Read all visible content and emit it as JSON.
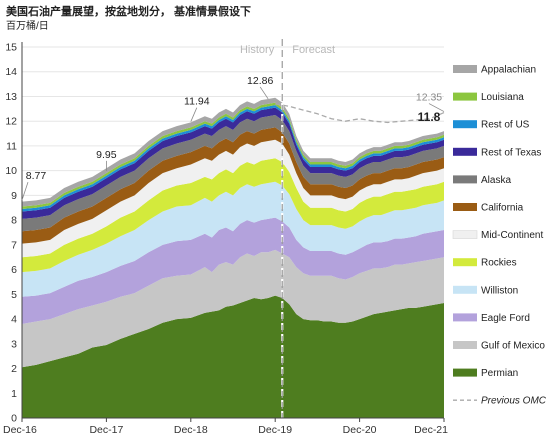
{
  "title": "美国石油产量展望，按盆地划分， 基准情景假设下",
  "unit": "百万桶/日",
  "chart_data": {
    "type": "area",
    "stacked": true,
    "y_axis": {
      "min": 0,
      "max": 15,
      "step": 1,
      "ticks": [
        "0",
        "1",
        "2",
        "3",
        "4",
        "5",
        "6",
        "7",
        "8",
        "9",
        "10",
        "11",
        "12",
        "13",
        "14",
        "15"
      ]
    },
    "x_axis": {
      "range": [
        "2016-12",
        "2021-12"
      ],
      "ticks": [
        "Dec-16",
        "Dec-17",
        "Dec-18",
        "Dec-19",
        "Dec-20",
        "Dec-21"
      ],
      "tick_months": [
        0,
        12,
        24,
        36,
        48,
        60
      ]
    },
    "divider": {
      "month": 37,
      "left_label": "History",
      "right_label": "Forecast"
    },
    "x_months": [
      0,
      2,
      4,
      6,
      8,
      10,
      12,
      14,
      16,
      18,
      20,
      22,
      24,
      26,
      27,
      28,
      29,
      30,
      31,
      32,
      33,
      34,
      35,
      36,
      37,
      38,
      39,
      40,
      41,
      42,
      43,
      44,
      45,
      46,
      47,
      48,
      49,
      50,
      51,
      52,
      53,
      54,
      55,
      56,
      57,
      58,
      59,
      60
    ],
    "series": [
      {
        "name": "Permian",
        "color": "#4e7d1f",
        "values": [
          2.05,
          2.15,
          2.3,
          2.45,
          2.6,
          2.85,
          2.95,
          3.2,
          3.4,
          3.6,
          3.85,
          4.0,
          4.05,
          4.25,
          4.3,
          4.35,
          4.5,
          4.55,
          4.65,
          4.75,
          4.85,
          4.8,
          4.85,
          4.95,
          4.85,
          4.6,
          4.2,
          4.0,
          3.95,
          3.95,
          3.9,
          3.9,
          3.85,
          3.85,
          3.9,
          4.0,
          4.1,
          4.2,
          4.25,
          4.3,
          4.35,
          4.4,
          4.45,
          4.45,
          4.5,
          4.55,
          4.6,
          4.65
        ]
      },
      {
        "name": "Gulf of Mexico",
        "color": "#c6c6c6",
        "values": [
          1.75,
          1.75,
          1.7,
          1.75,
          1.8,
          1.7,
          1.75,
          1.7,
          1.65,
          1.75,
          1.8,
          1.75,
          1.75,
          1.85,
          1.6,
          1.85,
          1.8,
          1.65,
          1.85,
          1.9,
          1.7,
          1.9,
          1.85,
          1.85,
          1.8,
          1.9,
          1.9,
          1.85,
          1.8,
          1.8,
          1.85,
          1.85,
          1.8,
          1.75,
          1.8,
          1.85,
          1.85,
          1.85,
          1.8,
          1.8,
          1.85,
          1.8,
          1.8,
          1.85,
          1.85,
          1.85,
          1.85,
          1.85
        ]
      },
      {
        "name": "Eagle Ford",
        "color": "#b3a2dc",
        "values": [
          1.1,
          1.05,
          1.05,
          1.1,
          1.15,
          1.15,
          1.2,
          1.25,
          1.3,
          1.35,
          1.35,
          1.4,
          1.4,
          1.35,
          1.4,
          1.4,
          1.4,
          1.35,
          1.35,
          1.35,
          1.35,
          1.3,
          1.35,
          1.3,
          1.3,
          1.2,
          1.1,
          1.05,
          1.0,
          1.0,
          1.0,
          1.0,
          1.0,
          1.0,
          1.0,
          1.0,
          1.05,
          1.05,
          1.05,
          1.05,
          1.05,
          1.05,
          1.05,
          1.05,
          1.1,
          1.1,
          1.1,
          1.1
        ]
      },
      {
        "name": "Williston",
        "color": "#c7e4f5",
        "values": [
          1.0,
          1.0,
          1.0,
          1.05,
          1.05,
          1.1,
          1.15,
          1.2,
          1.25,
          1.3,
          1.35,
          1.4,
          1.4,
          1.45,
          1.45,
          1.4,
          1.45,
          1.45,
          1.45,
          1.45,
          1.45,
          1.45,
          1.45,
          1.45,
          1.45,
          1.35,
          1.25,
          1.1,
          1.05,
          1.05,
          1.05,
          1.05,
          1.05,
          1.05,
          1.05,
          1.1,
          1.1,
          1.1,
          1.1,
          1.15,
          1.15,
          1.15,
          1.15,
          1.15,
          1.15,
          1.15,
          1.15,
          1.2
        ]
      },
      {
        "name": "Rockies",
        "color": "#d3ea3c",
        "values": [
          0.6,
          0.6,
          0.6,
          0.65,
          0.65,
          0.65,
          0.7,
          0.75,
          0.75,
          0.8,
          0.85,
          0.85,
          0.9,
          0.85,
          0.9,
          0.9,
          0.9,
          0.9,
          0.9,
          0.9,
          0.9,
          0.95,
          0.95,
          0.95,
          0.95,
          0.9,
          0.85,
          0.75,
          0.7,
          0.7,
          0.7,
          0.7,
          0.7,
          0.7,
          0.7,
          0.75,
          0.75,
          0.75,
          0.75,
          0.75,
          0.75,
          0.75,
          0.75,
          0.75,
          0.75,
          0.75,
          0.75,
          0.75
        ]
      },
      {
        "name": "Mid-Continent",
        "color": "#f0f0f0",
        "values": [
          0.55,
          0.55,
          0.55,
          0.6,
          0.6,
          0.6,
          0.65,
          0.65,
          0.65,
          0.7,
          0.7,
          0.7,
          0.75,
          0.75,
          0.75,
          0.75,
          0.75,
          0.75,
          0.75,
          0.75,
          0.75,
          0.75,
          0.75,
          0.75,
          0.75,
          0.7,
          0.6,
          0.55,
          0.5,
          0.5,
          0.5,
          0.5,
          0.5,
          0.5,
          0.5,
          0.5,
          0.5,
          0.5,
          0.5,
          0.5,
          0.5,
          0.5,
          0.5,
          0.55,
          0.55,
          0.55,
          0.55,
          0.55
        ]
      },
      {
        "name": "California",
        "color": "#9a5c14",
        "values": [
          0.5,
          0.5,
          0.5,
          0.5,
          0.5,
          0.5,
          0.5,
          0.5,
          0.5,
          0.5,
          0.5,
          0.5,
          0.5,
          0.5,
          0.5,
          0.5,
          0.5,
          0.5,
          0.5,
          0.5,
          0.5,
          0.5,
          0.5,
          0.5,
          0.45,
          0.45,
          0.45,
          0.45,
          0.45,
          0.45,
          0.45,
          0.45,
          0.45,
          0.45,
          0.45,
          0.45,
          0.45,
          0.45,
          0.45,
          0.45,
          0.45,
          0.45,
          0.45,
          0.45,
          0.45,
          0.45,
          0.45,
          0.45
        ]
      },
      {
        "name": "Alaska",
        "color": "#7a7a7a",
        "values": [
          0.5,
          0.5,
          0.5,
          0.5,
          0.5,
          0.5,
          0.5,
          0.5,
          0.5,
          0.5,
          0.5,
          0.5,
          0.5,
          0.5,
          0.5,
          0.5,
          0.5,
          0.5,
          0.5,
          0.5,
          0.5,
          0.5,
          0.5,
          0.5,
          0.5,
          0.5,
          0.45,
          0.45,
          0.45,
          0.45,
          0.45,
          0.45,
          0.45,
          0.45,
          0.45,
          0.45,
          0.45,
          0.45,
          0.45,
          0.45,
          0.45,
          0.45,
          0.45,
          0.45,
          0.45,
          0.45,
          0.45,
          0.45
        ]
      },
      {
        "name": "Rest of Texas",
        "color": "#3a2a9a",
        "values": [
          0.3,
          0.3,
          0.3,
          0.3,
          0.3,
          0.3,
          0.3,
          0.3,
          0.3,
          0.3,
          0.3,
          0.3,
          0.3,
          0.3,
          0.3,
          0.3,
          0.3,
          0.3,
          0.3,
          0.3,
          0.3,
          0.3,
          0.3,
          0.3,
          0.3,
          0.3,
          0.25,
          0.25,
          0.25,
          0.25,
          0.25,
          0.25,
          0.25,
          0.25,
          0.25,
          0.25,
          0.25,
          0.25,
          0.25,
          0.25,
          0.25,
          0.25,
          0.25,
          0.25,
          0.25,
          0.25,
          0.25,
          0.25
        ]
      },
      {
        "name": "Rest of US",
        "color": "#1d8fd6",
        "values": [
          0.1,
          0.1,
          0.1,
          0.1,
          0.1,
          0.1,
          0.1,
          0.1,
          0.1,
          0.1,
          0.1,
          0.1,
          0.1,
          0.1,
          0.1,
          0.1,
          0.1,
          0.1,
          0.1,
          0.1,
          0.1,
          0.1,
          0.1,
          0.1,
          0.1,
          0.1,
          0.1,
          0.1,
          0.1,
          0.1,
          0.1,
          0.1,
          0.1,
          0.1,
          0.1,
          0.1,
          0.1,
          0.1,
          0.1,
          0.1,
          0.1,
          0.1,
          0.1,
          0.1,
          0.1,
          0.1,
          0.1,
          0.1
        ]
      },
      {
        "name": "Louisiana",
        "color": "#8cc63f",
        "values": [
          0.1,
          0.1,
          0.1,
          0.1,
          0.1,
          0.1,
          0.1,
          0.1,
          0.1,
          0.1,
          0.1,
          0.1,
          0.1,
          0.1,
          0.1,
          0.1,
          0.1,
          0.1,
          0.1,
          0.1,
          0.1,
          0.1,
          0.1,
          0.1,
          0.1,
          0.1,
          0.1,
          0.1,
          0.1,
          0.1,
          0.1,
          0.1,
          0.1,
          0.1,
          0.1,
          0.1,
          0.1,
          0.1,
          0.1,
          0.1,
          0.1,
          0.1,
          0.1,
          0.1,
          0.1,
          0.1,
          0.1,
          0.1
        ]
      },
      {
        "name": "Appalachian",
        "color": "#a6a6a6",
        "values": [
          0.2,
          0.2,
          0.2,
          0.2,
          0.2,
          0.2,
          0.2,
          0.2,
          0.2,
          0.2,
          0.2,
          0.2,
          0.2,
          0.2,
          0.2,
          0.2,
          0.2,
          0.2,
          0.2,
          0.2,
          0.2,
          0.2,
          0.2,
          0.2,
          0.2,
          0.2,
          0.15,
          0.15,
          0.15,
          0.15,
          0.15,
          0.15,
          0.15,
          0.15,
          0.15,
          0.15,
          0.15,
          0.15,
          0.15,
          0.15,
          0.15,
          0.15,
          0.15,
          0.15,
          0.15,
          0.15,
          0.15,
          0.15
        ]
      }
    ],
    "previous_omc": {
      "name": "Previous OMC",
      "color": "#aaaaaa",
      "x_months": [
        36,
        38,
        40,
        42,
        44,
        46,
        48,
        50,
        52,
        54,
        56,
        58,
        60
      ],
      "values": [
        12.7,
        12.6,
        12.45,
        12.3,
        12.1,
        12.0,
        12.1,
        12.0,
        11.95,
        12.0,
        12.05,
        12.1,
        12.35
      ]
    },
    "annotations": [
      {
        "text": "8.77",
        "month": 0,
        "value": 8.77,
        "bold": false
      },
      {
        "text": "9.95",
        "month": 12,
        "value": 9.95,
        "bold": false
      },
      {
        "text": "11.94",
        "month": 24,
        "value": 11.94,
        "bold": false
      },
      {
        "text": "12.86",
        "month": 35,
        "value": 12.86,
        "bold": false
      },
      {
        "text": "12.35",
        "month": 60,
        "value": 12.35,
        "bold": false
      },
      {
        "text": "11.8",
        "month": 60,
        "value": 11.8,
        "bold": true
      }
    ],
    "legend_position": "right"
  }
}
